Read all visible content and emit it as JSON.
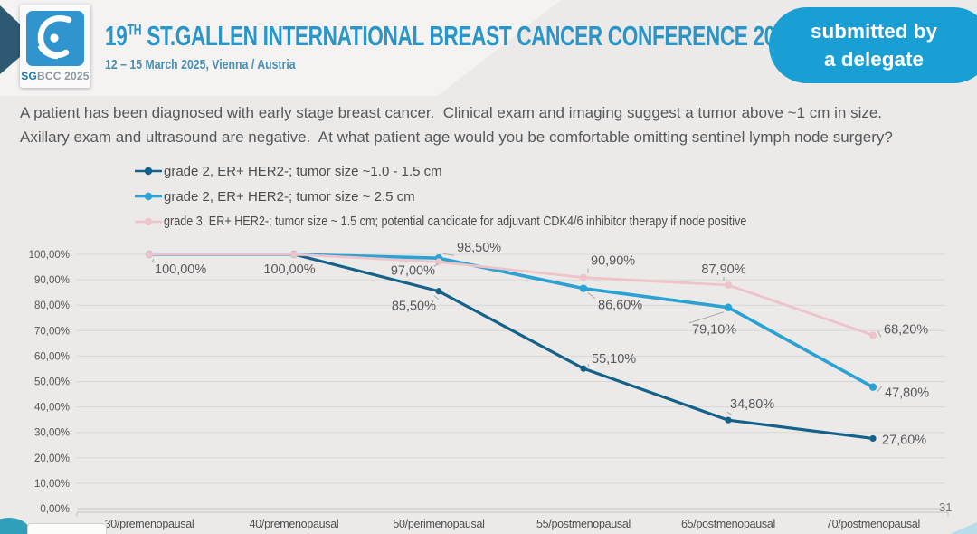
{
  "header": {
    "logo_sg": "SG",
    "logo_rest": "BCC 2025",
    "title_num": "19",
    "title_sup": "TH",
    "title_rest": " ST.GALLEN INTERNATIONAL BREAST CANCER CONFERENCE 2025",
    "subtitle": "12 – 15 March 2025, Vienna / Austria",
    "badge_line1": "submitted by",
    "badge_line2": "a delegate"
  },
  "question": {
    "line1": "A patient has been diagnosed with early stage breast cancer.  Clinical exam and imaging suggest a tumor above ~1 cm in size.",
    "line2": "Axillary exam and ultrasound are negative.  At what patient age would you be comfortable omitting sentinel lymph node surgery?"
  },
  "page_number": "31",
  "colors": {
    "badge_blue": "#199fd4",
    "title_blue": "#2a95c8",
    "series_dark_blue": "#14618a",
    "series_light_blue": "#2aa2d4",
    "series_pink": "#eec3ca",
    "grid": "#d9d8d6",
    "axis": "#c2c1c0",
    "label_gray": "#58585a"
  },
  "chart_data": {
    "type": "line",
    "title": "",
    "xlabel": "",
    "ylabel": "",
    "categories": [
      "30/premenopausal",
      "40/premenopausal",
      "50/perimenopausal",
      "55/postmenopausal",
      "65/postmenopausal",
      "70/postmenopausal"
    ],
    "ylim": [
      0,
      100
    ],
    "ytick_step": 10,
    "ytick_labels": [
      "0,00%",
      "10,00%",
      "20,00%",
      "30,00%",
      "40,00%",
      "50,00%",
      "60,00%",
      "70,00%",
      "80,00%",
      "90,00%",
      "100,00%"
    ],
    "grid": true,
    "legend_position": "top-left",
    "series": [
      {
        "name": "grade 2, ER+ HER2-; tumor size ~1.0 - 1.5 cm",
        "color": "#14618a",
        "line_width": 3.2,
        "marker_r": 3.6,
        "values": [
          100,
          100,
          85.5,
          55.1,
          34.8,
          27.6
        ],
        "labels": [
          null,
          null,
          {
            "text": "85,50%",
            "dx": -3,
            "dy": 21,
            "anchor": "end",
            "leader": true
          },
          {
            "text": "55,10%",
            "dx": 9,
            "dy": -6,
            "anchor": "start",
            "leader": true
          },
          {
            "text": "34,80%",
            "dx": 2,
            "dy": -13,
            "anchor": "start",
            "leader": true
          },
          {
            "text": "27,60%",
            "dx": 10,
            "dy": 6,
            "anchor": "start",
            "leader": false
          }
        ]
      },
      {
        "name": "grade 2, ER+ HER2-; tumor size ~ 2.5 cm",
        "color": "#2aa2d4",
        "line_width": 3.6,
        "marker_r": 4.2,
        "values": [
          100,
          100,
          98.5,
          86.6,
          79.1,
          47.8
        ],
        "labels": [
          null,
          null,
          {
            "text": "98,50%",
            "dx": 20,
            "dy": -7,
            "anchor": "start",
            "leader": true
          },
          {
            "text": "86,60%",
            "dx": 16,
            "dy": 23,
            "anchor": "start",
            "leader": true
          },
          {
            "text": "79,10%",
            "dx": -40,
            "dy": 29,
            "anchor": "start",
            "leader": true
          },
          {
            "text": "47,80%",
            "dx": 13,
            "dy": 11,
            "anchor": "start",
            "leader": true
          }
        ]
      },
      {
        "name": "grade 3, ER+ HER2-; tumor size ~ 1.5 cm; potential candidate for adjuvant CDK4/6 inhibitor therapy if node positive",
        "color": "#eec3ca",
        "line_width": 2.8,
        "marker_r": 4.0,
        "values": [
          100,
          100,
          97.0,
          90.9,
          87.9,
          68.2
        ],
        "labels": [
          {
            "text": "100,00%",
            "dx": 6,
            "dy": 21,
            "anchor": "start",
            "leader": true
          },
          {
            "text": "100,00%",
            "dx": -5,
            "dy": 21,
            "anchor": "middle",
            "leader": false
          },
          {
            "text": "97,00%",
            "dx": -4,
            "dy": 14,
            "anchor": "end",
            "leader": true
          },
          {
            "text": "90,90%",
            "dx": 8,
            "dy": -14,
            "anchor": "start",
            "leader": true
          },
          {
            "text": "87,90%",
            "dx": -5,
            "dy": -13,
            "anchor": "middle",
            "leader": true
          },
          {
            "text": "68,20%",
            "dx": 12,
            "dy": -2,
            "anchor": "start",
            "leader": true
          }
        ]
      }
    ]
  }
}
